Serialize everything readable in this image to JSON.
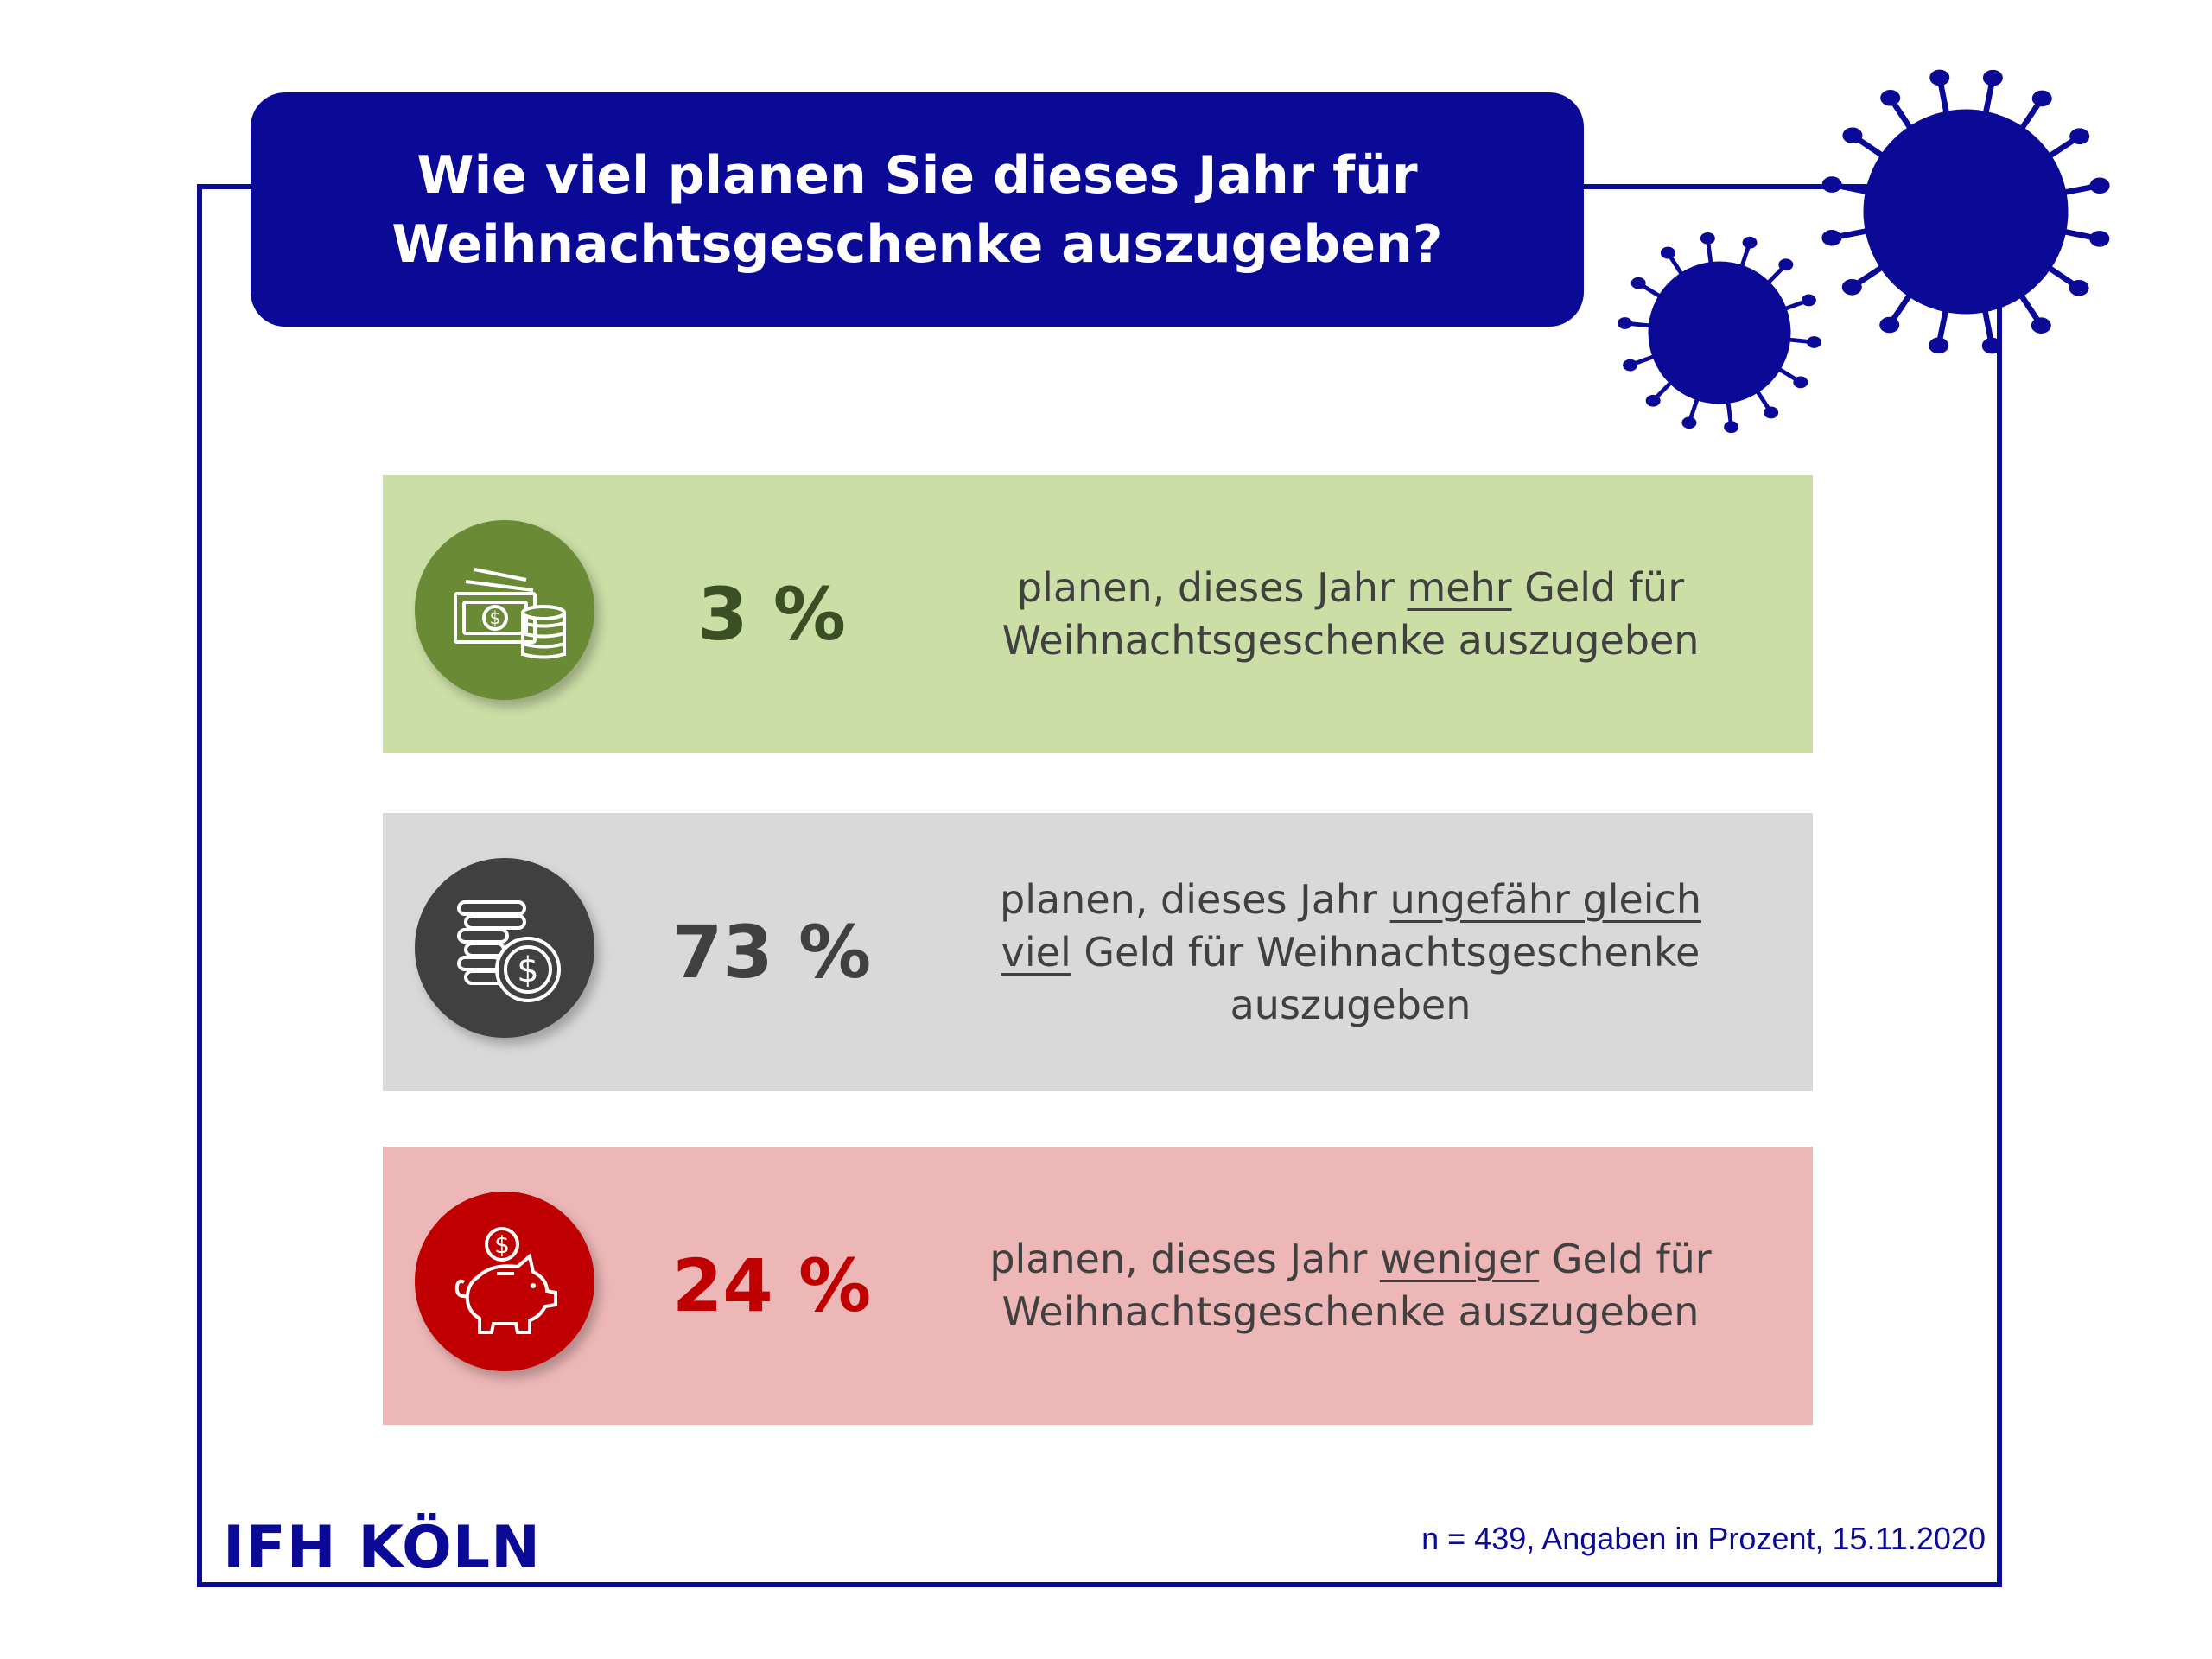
{
  "title": {
    "line1": "Wie viel planen Sie dieses Jahr für",
    "line2": "Weihnachtsgeschenke auszugeben?"
  },
  "colors": {
    "brand": "#0a0a96",
    "more_bg": "#cbdea6",
    "more_icon": "#6b8a35",
    "more_text": "#3a4f24",
    "same_bg": "#d9d9d9",
    "same_icon": "#404040",
    "same_text": "#404040",
    "less_bg": "#edb7b8",
    "less_icon": "#c00000",
    "less_text": "#c00000"
  },
  "rows": [
    {
      "icon": "money-coins-icon",
      "percent_label": "3 %",
      "desc": {
        "l1a": "planen, dieses Jahr ",
        "l1u": "mehr",
        "l1b": " Geld für",
        "l2": "Weihnachtsgeschenke auszugeben"
      }
    },
    {
      "icon": "coin-stack-icon",
      "percent_label": "73 %",
      "desc": {
        "l1a": "planen, dieses Jahr ",
        "l1u": "ungefähr gleich",
        "l2u": "viel",
        "l2b": " Geld für Weihnachtsgeschenke",
        "l3": "auszugeben"
      }
    },
    {
      "icon": "piggy-bank-icon",
      "percent_label": "24 %",
      "desc": {
        "l1a": "planen, dieses Jahr ",
        "l1u": "weniger",
        "l1b": " Geld für",
        "l2": "Weihnachtsgeschenke auszugeben"
      }
    }
  ],
  "chart_data": {
    "type": "table",
    "title": "Wie viel planen Sie dieses Jahr für Weihnachtsgeschenke auszugeben?",
    "categories": [
      "planen, dieses Jahr mehr Geld für Weihnachtsgeschenke auszugeben",
      "planen, dieses Jahr ungefähr gleich viel Geld für Weihnachtsgeschenke auszugeben",
      "planen, dieses Jahr weniger Geld für Weihnachtsgeschenke auszugeben"
    ],
    "values": [
      3,
      73,
      24
    ]
  },
  "footer": {
    "logo": "IFH KÖLN",
    "note": "n = 439, Angaben in Prozent, 15.11.2020"
  }
}
